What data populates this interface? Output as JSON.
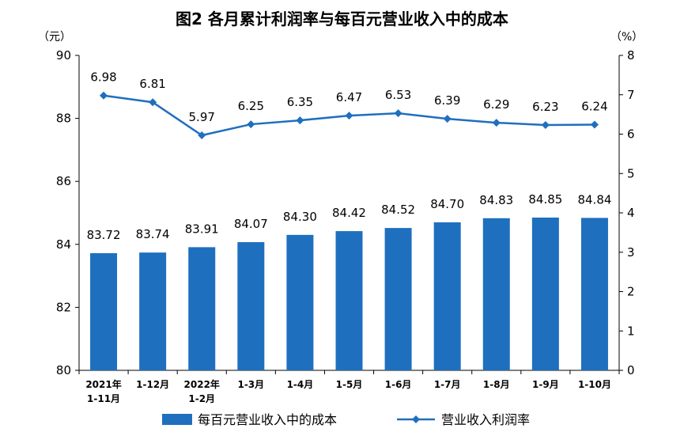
{
  "chart_data": {
    "type": "bar+line",
    "title": "图2 各月累计利润率与每百元营业收入中的成本",
    "left_axis_unit": "（元）",
    "right_axis_unit": "（%）",
    "left_axis": {
      "min": 80,
      "max": 90,
      "ticks": [
        80,
        82,
        84,
        86,
        88,
        90
      ]
    },
    "right_axis": {
      "min": 0,
      "max": 8,
      "ticks": [
        0,
        1,
        2,
        3,
        4,
        5,
        6,
        7,
        8
      ]
    },
    "categories": [
      [
        "2021年",
        "1-11月"
      ],
      [
        "1-12月"
      ],
      [
        "2022年",
        "1-2月"
      ],
      [
        "1-3月"
      ],
      [
        "1-4月"
      ],
      [
        "1-5月"
      ],
      [
        "1-6月"
      ],
      [
        "1-7月"
      ],
      [
        "1-8月"
      ],
      [
        "1-9月"
      ],
      [
        "1-10月"
      ]
    ],
    "series": [
      {
        "name": "每百元营业收入中的成本",
        "type": "bar",
        "axis": "left",
        "color": "#1f6fbf",
        "values": [
          83.72,
          83.74,
          83.91,
          84.07,
          84.3,
          84.42,
          84.52,
          84.7,
          84.83,
          84.85,
          84.84
        ],
        "labels": [
          "83.72",
          "83.74",
          "83.91",
          "84.07",
          "84.30",
          "84.42",
          "84.52",
          "84.70",
          "84.83",
          "84.85",
          "84.84"
        ]
      },
      {
        "name": "营业收入利润率",
        "type": "line",
        "axis": "right",
        "color": "#1f6fbf",
        "values": [
          6.98,
          6.81,
          5.97,
          6.25,
          6.35,
          6.47,
          6.53,
          6.39,
          6.29,
          6.23,
          6.24
        ],
        "labels": [
          "6.98",
          "6.81",
          "5.97",
          "6.25",
          "6.35",
          "6.47",
          "6.53",
          "6.39",
          "6.29",
          "6.23",
          "6.24"
        ]
      }
    ],
    "grid": false,
    "legend_position": "bottom"
  }
}
